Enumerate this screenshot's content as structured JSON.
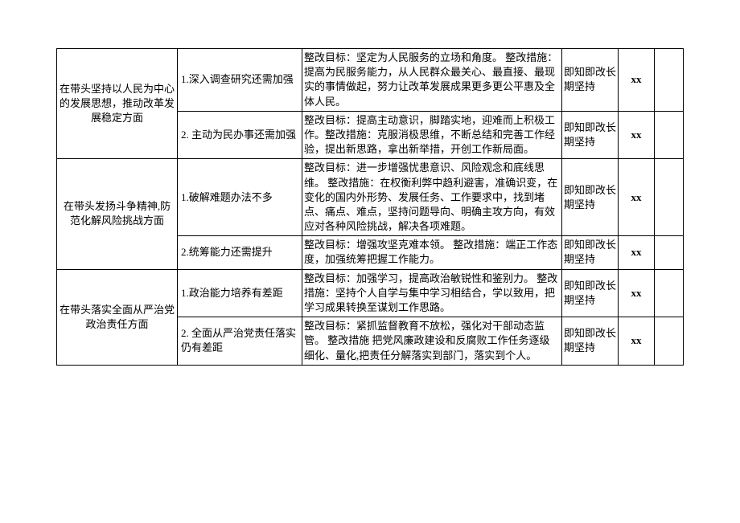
{
  "table": {
    "sections": [
      {
        "category": "在带头坚持以人民为中心的发展思想，推动改革发展稳定方面",
        "rows": [
          {
            "issue": "1.深入调查研究还需加强",
            "detail": "整改目标：坚定为人民服务的立场和角度。\n整改措施：提高为民服务能力，从人民群众最关心、最直接、最现实的事情做起，努力让改革发展成果更多更公平惠及全体人民。",
            "timing": "即知即改长期坚持",
            "person": "xx"
          },
          {
            "issue": "2. 主动为民办事还需加强",
            "detail": "整改目标：提高主动意识，脚踏实地，迎难而上积极工作。整改措施：克服消极思维，不断总结和完善工作经验，提出新思路，拿出新举措，开创工作新局面。",
            "timing": "即知即改长期坚持",
            "person": "xx"
          }
        ]
      },
      {
        "category": "在带头发扬斗争精神,防范化解风险挑战方面",
        "rows": [
          {
            "issue": "1.破解难题办法不多",
            "detail": "整改目标：进一步增强忧患意识、风险观念和底线思维。\n整改措施：在权衡利弊中趋利避害，准确识变，在变化的国内外形势、发展任务、工作要求中，找到堵点、痛点、难点，坚持问题导向、明确主攻方向，有效应对各种风险挑战，解决各项难题。",
            "timing": "即知即改长期坚持",
            "person": "xx"
          },
          {
            "issue": "2.统筹能力还需提升",
            "detail": "整改目标：增强攻坚克难本领。\n整改措施：端正工作态度，加强统筹把握工作能力。",
            "timing": "即知即改长期坚持",
            "person": "xx"
          }
        ]
      },
      {
        "category": "在带头落实全面从严治党政治责任方面",
        "rows": [
          {
            "issue": "1.政治能力培养有差距",
            "detail": "整改目标：加强学习，提高政治敏锐性和鉴别力。\n整改措施：坚持个人自学与集中学习相结合，学以致用，把学习成果转换至谋划工作思路。",
            "timing": "即知即改长期坚持",
            "person": "xx"
          },
          {
            "issue": "2. 全面从严治党责任落实仍有差距",
            "detail": "整改目标：紧抓监督教育不放松，强化对干部动态监管。\n整改措施  把党风廉政建设和反腐败工作任务逐级细化、量化,把责任分解落实到部门，落实到个人。",
            "timing": "即知即改长期坚持",
            "person": "xx"
          }
        ]
      }
    ]
  }
}
